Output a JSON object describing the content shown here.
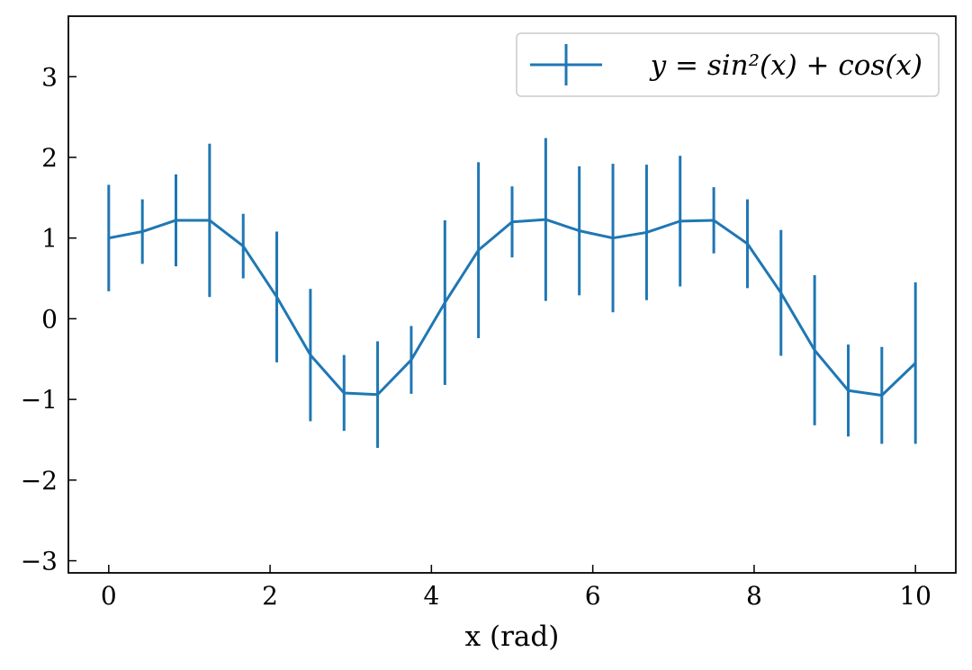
{
  "chart_data": {
    "type": "line",
    "title": "",
    "xlabel": "x (rad)",
    "ylabel": "",
    "xlim": [
      -0.5,
      10.5
    ],
    "ylim": [
      -3.15,
      3.75
    ],
    "x_ticks": [
      0,
      2,
      4,
      6,
      8,
      10
    ],
    "y_ticks": [
      -3,
      -2,
      -1,
      0,
      1,
      2,
      3
    ],
    "x_tick_labels": [
      "0",
      "2",
      "4",
      "6",
      "8",
      "10"
    ],
    "y_tick_labels": [
      "−3",
      "−2",
      "−1",
      "0",
      "1",
      "2",
      "3"
    ],
    "legend_placement": "top-right",
    "color": "#1f77b4",
    "series": [
      {
        "name": "y = sin²(x) + cos(x)",
        "x": [
          0,
          0.417,
          0.833,
          1.25,
          1.667,
          2.083,
          2.5,
          2.917,
          3.333,
          3.75,
          4.167,
          4.583,
          5.0,
          5.417,
          5.833,
          6.25,
          6.667,
          7.083,
          7.5,
          7.917,
          8.333,
          8.75,
          9.167,
          9.583,
          10.0
        ],
        "y": [
          1.0,
          1.08,
          1.22,
          1.22,
          0.9,
          0.27,
          -0.45,
          -0.92,
          -0.94,
          -0.51,
          0.2,
          0.85,
          1.2,
          1.23,
          1.09,
          1.0,
          1.07,
          1.21,
          1.22,
          0.93,
          0.32,
          -0.39,
          -0.89,
          -0.95,
          -0.55
        ],
        "yerr": [
          0.66,
          0.4,
          0.57,
          0.95,
          0.4,
          0.81,
          0.82,
          0.47,
          0.66,
          0.42,
          1.02,
          1.09,
          0.44,
          1.01,
          0.8,
          0.92,
          0.84,
          0.81,
          0.41,
          0.55,
          0.78,
          0.93,
          0.57,
          0.6,
          1.0
        ]
      }
    ]
  }
}
